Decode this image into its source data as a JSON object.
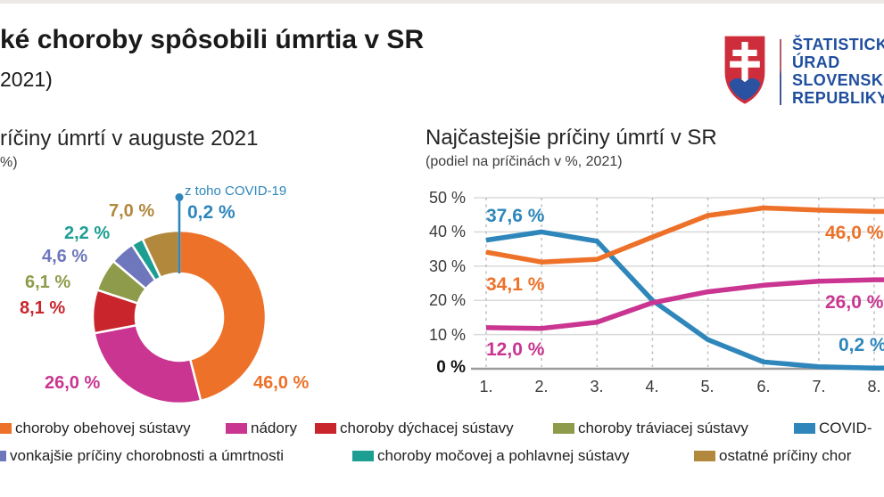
{
  "header": {
    "title": "ké choroby spôsobili úmrtia v SR",
    "subtitle": "2021)",
    "logo": {
      "lines": [
        "ŠTATISTICK",
        "ÚRAD",
        "SLOVENSK",
        "REPUBLIKY"
      ],
      "text_color": "#1f4e9e",
      "shield_red": "#ce2e3c",
      "shield_blue": "#2b52a0"
    }
  },
  "chart_data": [
    {
      "type": "pie",
      "donut": true,
      "title": "ríčiny úmrtí v auguste 2021",
      "subtitle": "%)",
      "slices": [
        {
          "name": "choroby obehovej sústavy",
          "value": 46.0,
          "display": "46,0 %",
          "color": "#ED7129"
        },
        {
          "name": "nádory",
          "value": 26.0,
          "display": "26,0 %",
          "color": "#C93590"
        },
        {
          "name": "choroby dýchacej sústavy",
          "value": 8.1,
          "display": "8,1 %",
          "color": "#C9252C"
        },
        {
          "name": "choroby tráviacej sústavy",
          "value": 6.1,
          "display": "6,1 %",
          "color": "#8E9B4B"
        },
        {
          "name": "vonkajšie príčiny chorobnosti a úmrtnosti",
          "value": 4.6,
          "display": "4,6 %",
          "color": "#6F77BC"
        },
        {
          "name": "choroby močovej a pohlavnej sústavy",
          "value": 2.2,
          "display": "2,2 %",
          "color": "#1C9E92"
        },
        {
          "name": "ostatné príčiny chor",
          "value": 7.0,
          "display": "7,0 %",
          "color": "#B1883C"
        }
      ],
      "callout": {
        "label": "z toho COVID-19",
        "value": 0.2,
        "display": "0,2 %",
        "color": "#2E86BB"
      }
    },
    {
      "type": "line",
      "title": "Najčastejšie príčiny úmrtí v SR",
      "subtitle": "(podiel na príčinách v %, 2021)",
      "x": [
        "1.",
        "2.",
        "3.",
        "4.",
        "5.",
        "6.",
        "7.",
        "8."
      ],
      "ylim": [
        0,
        50
      ],
      "yticks": [
        "50 %",
        "40 %",
        "30 %",
        "20 %",
        "10 %",
        "0 %"
      ],
      "grid": true,
      "legend_position": "none",
      "series": [
        {
          "name": "choroby obehovej sústavy",
          "color": "#ED7129",
          "values": [
            34.1,
            31.2,
            32.0,
            38.5,
            44.8,
            47.0,
            46.4,
            46.0
          ],
          "start_label": "34,1 %",
          "end_label": "46,0 %"
        },
        {
          "name": "nádory",
          "color": "#C93590",
          "values": [
            12.0,
            11.8,
            13.6,
            19.3,
            22.5,
            24.4,
            25.6,
            26.0
          ],
          "start_label": "12,0 %",
          "end_label": "26,0 %"
        },
        {
          "name": "COVID-",
          "color": "#2E86BB",
          "values": [
            37.6,
            40.0,
            37.3,
            20.0,
            8.5,
            2.0,
            0.6,
            0.2
          ],
          "start_label": "37,6 %",
          "end_label": "0,2 %"
        }
      ]
    }
  ],
  "legend": {
    "rows": [
      [
        {
          "label": "choroby obehovej sústavy",
          "color": "#ED7129"
        },
        {
          "label": "nádory",
          "color": "#C93590"
        },
        {
          "label": "choroby dýchacej sústavy",
          "color": "#C9252C"
        },
        {
          "label": "choroby tráviacej sústavy",
          "color": "#8E9B4B"
        },
        {
          "label": "COVID-",
          "color": "#2E86BB"
        }
      ],
      [
        {
          "label": "vonkajšie príčiny chorobnosti a úmrtnosti",
          "color": "#6F77BC"
        },
        {
          "label": "choroby močovej a pohlavnej sústavy",
          "color": "#1C9E92"
        },
        {
          "label": "ostatné príčiny chor",
          "color": "#B1883C"
        }
      ]
    ]
  }
}
